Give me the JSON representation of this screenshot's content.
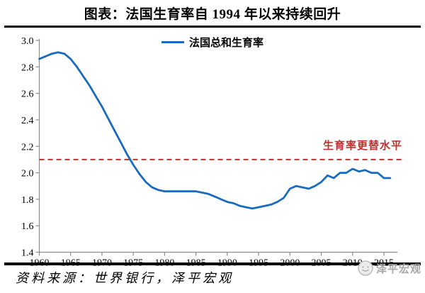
{
  "page": {
    "title": "图表：法国生育率自 1994 年以来持续回升"
  },
  "legend": {
    "label": "法国总和生育率"
  },
  "annotation": {
    "label": "生育率更替水平"
  },
  "footer": {
    "source_note": "资料来源：世界银行，泽平宏观",
    "watermark_label": "泽平宏观"
  },
  "colors": {
    "line_blue": "#1a6bbf",
    "replacement_red": "#c12f2f",
    "axis_gray": "#8c8c8c",
    "watermark_gray": "#a8a8a8"
  },
  "chart_data": {
    "type": "line",
    "title": "图表：法国生育率自 1994 年以来持续回升",
    "xlabel": "",
    "ylabel": "",
    "x": [
      1960,
      1961,
      1962,
      1963,
      1964,
      1965,
      1966,
      1967,
      1968,
      1969,
      1970,
      1971,
      1972,
      1973,
      1974,
      1975,
      1976,
      1977,
      1978,
      1979,
      1980,
      1981,
      1982,
      1983,
      1984,
      1985,
      1986,
      1987,
      1988,
      1989,
      1990,
      1991,
      1992,
      1993,
      1994,
      1995,
      1996,
      1997,
      1998,
      1999,
      2000,
      2001,
      2002,
      2003,
      2004,
      2005,
      2006,
      2007,
      2008,
      2009,
      2010,
      2011,
      2012,
      2013,
      2014,
      2015,
      2016
    ],
    "series": [
      {
        "name": "法国总和生育率",
        "values": [
          2.86,
          2.88,
          2.9,
          2.91,
          2.9,
          2.86,
          2.8,
          2.73,
          2.66,
          2.58,
          2.5,
          2.41,
          2.32,
          2.23,
          2.14,
          2.06,
          1.99,
          1.93,
          1.89,
          1.87,
          1.86,
          1.86,
          1.86,
          1.86,
          1.86,
          1.86,
          1.85,
          1.84,
          1.82,
          1.8,
          1.78,
          1.77,
          1.75,
          1.74,
          1.73,
          1.74,
          1.75,
          1.76,
          1.78,
          1.81,
          1.88,
          1.9,
          1.89,
          1.88,
          1.9,
          1.93,
          1.98,
          1.96,
          2.0,
          2.0,
          2.03,
          2.01,
          2.02,
          2.0,
          2.0,
          1.96,
          1.96
        ]
      }
    ],
    "xlim": [
      1960,
      2016.5
    ],
    "ylim": [
      1.4,
      3.0
    ],
    "x_ticks": [
      1960,
      1965,
      1970,
      1975,
      1980,
      1985,
      1990,
      1995,
      2000,
      2005,
      2010,
      2015
    ],
    "y_ticks": [
      1.4,
      1.6,
      1.8,
      2.0,
      2.2,
      2.4,
      2.6,
      2.8,
      3.0
    ],
    "grid": false,
    "legend_position": "top-center",
    "reference_line": {
      "value": 2.1,
      "label": "生育率更替水平",
      "style": "dashed",
      "color": "#c12f2f"
    }
  }
}
